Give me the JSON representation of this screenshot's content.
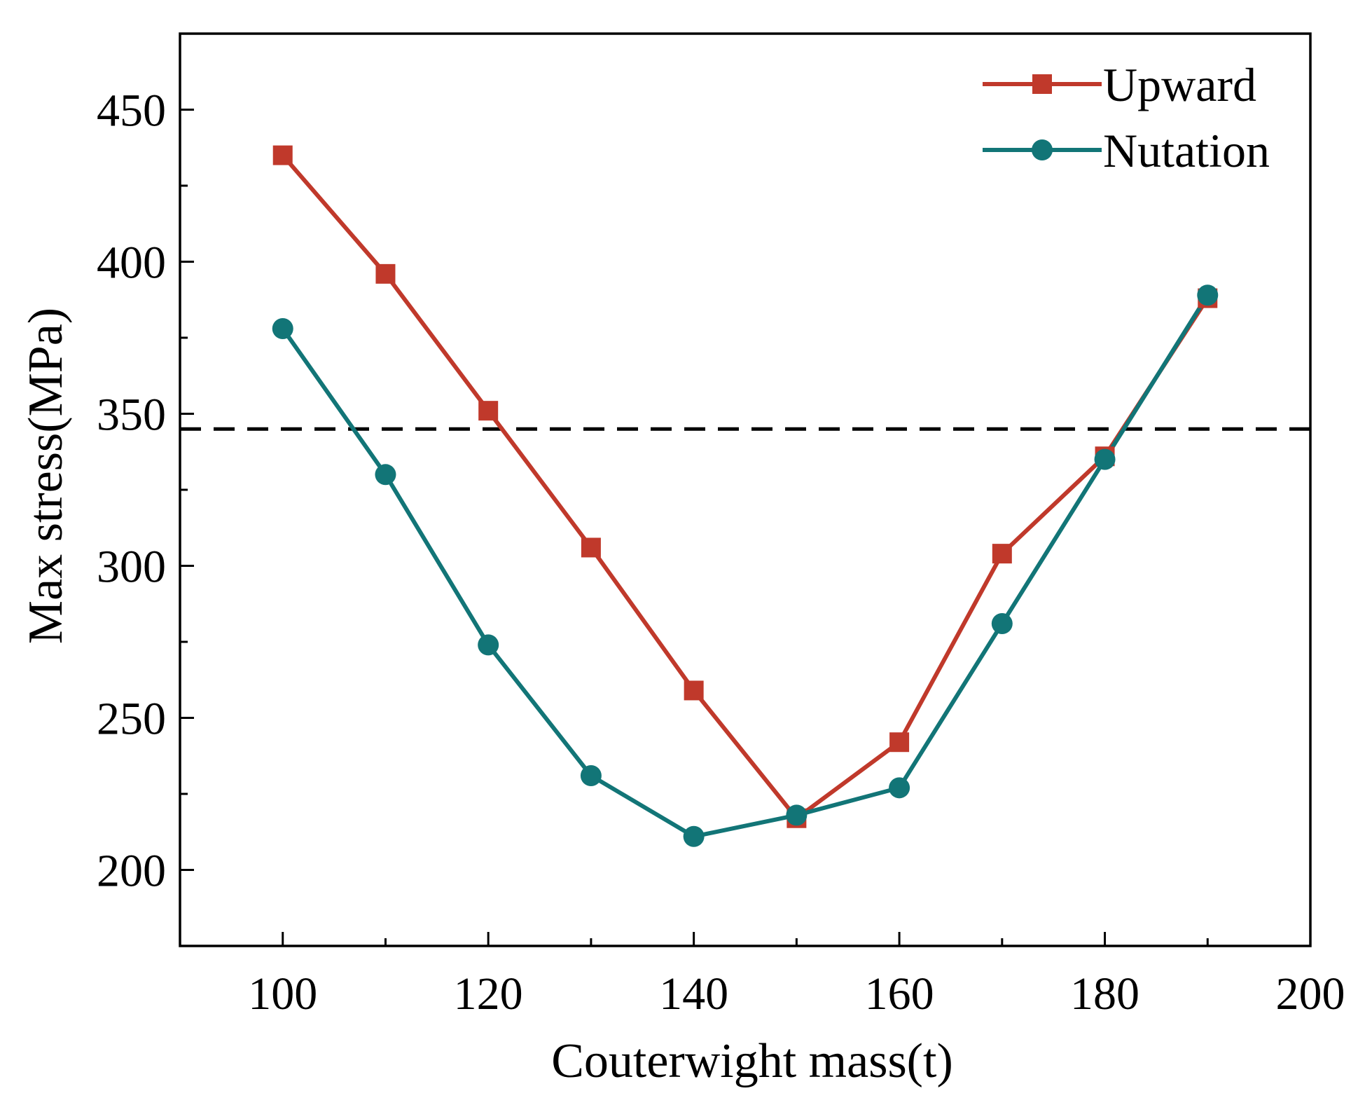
{
  "chart_data": {
    "type": "line",
    "title": "",
    "xlabel": "Couterwight mass(t)",
    "ylabel": "Max stress(MPa)",
    "xlim": [
      90,
      200
    ],
    "ylim": [
      175,
      475
    ],
    "xticks": [
      100,
      120,
      140,
      160,
      180,
      200
    ],
    "yticks": [
      200,
      250,
      300,
      350,
      400,
      450
    ],
    "x": [
      100,
      110,
      120,
      130,
      140,
      150,
      160,
      170,
      180,
      190
    ],
    "series": [
      {
        "name": "Upward",
        "marker": "square",
        "color": "#c0392b",
        "values": [
          435,
          396,
          351,
          306,
          259,
          217,
          242,
          304,
          336,
          388
        ]
      },
      {
        "name": "Nutation",
        "marker": "circle",
        "color": "#127577",
        "values": [
          378,
          330,
          274,
          231,
          211,
          218,
          227,
          281,
          335,
          389
        ]
      }
    ],
    "reference_line": {
      "y": 345,
      "style": "dashed",
      "color": "#000000"
    },
    "legend": {
      "position": "top-right",
      "labels": [
        "Upward",
        "Nutation"
      ]
    },
    "grid": false
  }
}
